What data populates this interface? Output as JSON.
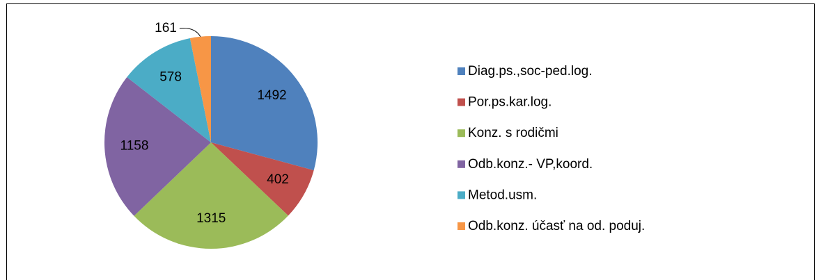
{
  "chart_data": {
    "type": "pie",
    "categories": [
      "Diag.ps.,soc-ped.log.",
      "Por.ps.kar.log.",
      "Konz. s rodičmi",
      "Odb.konz.- VP,koord.",
      "Metod.usm.",
      "Odb.konz. účasť na od. poduj."
    ],
    "values": [
      1492,
      402,
      1315,
      1158,
      578,
      161
    ],
    "colors": [
      "#4f81bd",
      "#c0504d",
      "#9bbb59",
      "#8064a2",
      "#4bacc6",
      "#f79646"
    ],
    "legend": "right"
  }
}
